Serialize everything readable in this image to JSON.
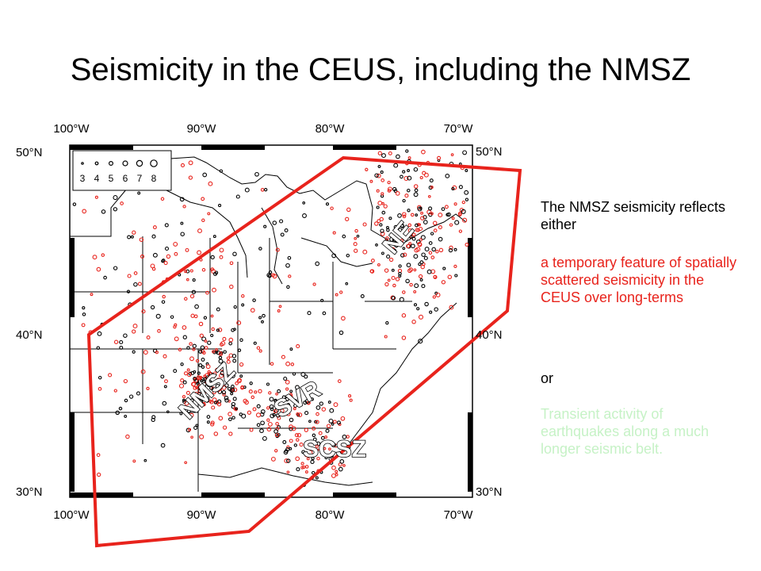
{
  "slide": {
    "title": "Seismicity in the CEUS, including the NMSZ"
  },
  "map": {
    "lon_labels_top": [
      "100°W",
      "90°W",
      "80°W",
      "70°W"
    ],
    "lon_labels_bottom": [
      "100°W",
      "90°W",
      "80°W",
      "70°W"
    ],
    "lat_labels_left": [
      "50°N",
      "40°N",
      "30°N"
    ],
    "lat_labels_right": [
      "50°N",
      "40°N",
      "30°N"
    ],
    "legend_magnitudes": [
      "3",
      "4",
      "5",
      "6",
      "7",
      "8"
    ],
    "zone_labels": {
      "ne": "NE",
      "nmsz": "NMSZ",
      "svr": "SVR",
      "scsz": "SCSZ"
    },
    "colors": {
      "outline": "#e8231c",
      "event_red": "#e8231c",
      "event_black": "#000000"
    }
  },
  "sidebar": {
    "intro": "The NMSZ seismicity reflects either",
    "option1": "a temporary feature of spatially scattered seismicity in the CEUS over long-terms",
    "or_word": "or",
    "option2": "Transient activity of earthquakes along a much longer seismic belt."
  },
  "colors": {
    "option1_text": "#e8231c",
    "option2_text": "#c6f2c6"
  }
}
